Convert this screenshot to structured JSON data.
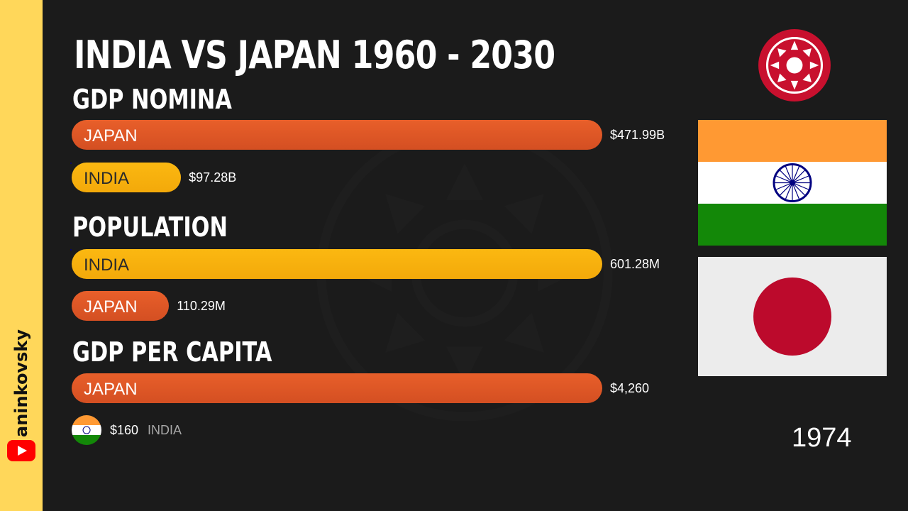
{
  "title": "INDIA VS JAPAN 1960 - 2030",
  "channel": "aninkovsky",
  "year": "1974",
  "colors": {
    "japan_bar": "#e05a26",
    "india_bar": "#f7b20d",
    "sidebar": "#ffd75a",
    "background": "#1b1b1b"
  },
  "chart_data": [
    {
      "type": "bar",
      "title": "GDP NOMINA",
      "categories": [
        "JAPAN",
        "INDIA"
      ],
      "values": [
        471.99,
        97.28
      ],
      "value_labels": [
        "$471.99B",
        "$97.28B"
      ]
    },
    {
      "type": "bar",
      "title": "POPULATION",
      "categories": [
        "INDIA",
        "JAPAN"
      ],
      "values": [
        601.28,
        110.29
      ],
      "value_labels": [
        "601.28M",
        "110.29M"
      ]
    },
    {
      "type": "bar",
      "title": "GDP PER CAPITA",
      "categories": [
        "JAPAN",
        "INDIA"
      ],
      "values": [
        4260,
        160
      ],
      "value_labels": [
        "$4,260",
        "$160"
      ]
    }
  ]
}
